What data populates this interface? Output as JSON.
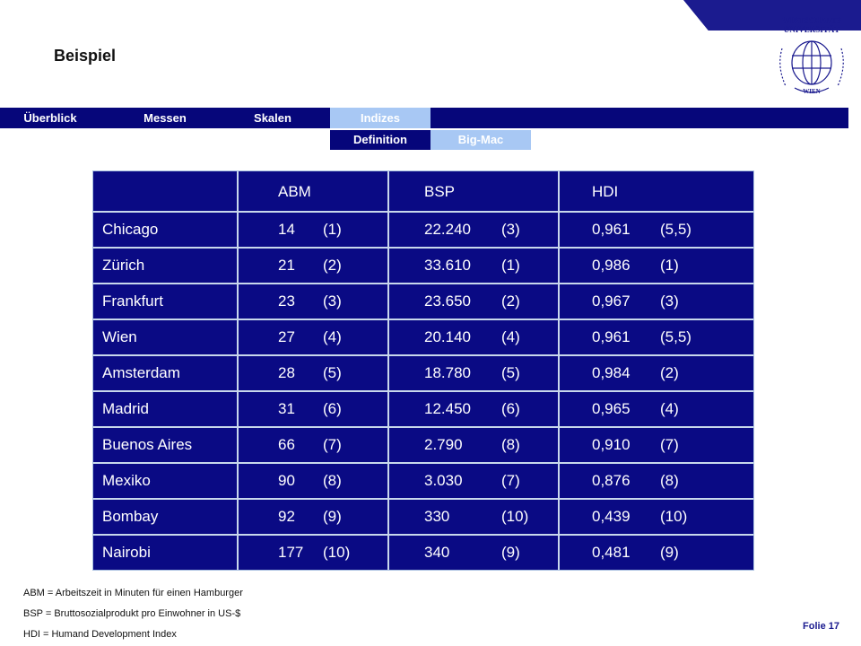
{
  "slide": {
    "title": "Beispiel",
    "folie": "Folie 17"
  },
  "logo": {
    "line1": "WIRTSCHAFTS",
    "line2": "UNIVERSITÄT",
    "line3": "WIEN"
  },
  "nav": {
    "primary": [
      "Überblick",
      "Messen",
      "Skalen",
      "Indizes"
    ],
    "active": "Indizes",
    "sub": [
      "Definition",
      "Big-Mac"
    ]
  },
  "table": {
    "headers": [
      "",
      "ABM",
      "BSP",
      "HDI"
    ],
    "rows": [
      {
        "city": "Chicago",
        "abm": "14",
        "abm_rank": "(1)",
        "bsp": "22.240",
        "bsp_rank": "(3)",
        "hdi": "0,961",
        "hdi_rank": "(5,5)"
      },
      {
        "city": "Zürich",
        "abm": "21",
        "abm_rank": "(2)",
        "bsp": "33.610",
        "bsp_rank": "(1)",
        "hdi": "0,986",
        "hdi_rank": "(1)"
      },
      {
        "city": "Frankfurt",
        "abm": "23",
        "abm_rank": "(3)",
        "bsp": "23.650",
        "bsp_rank": "(2)",
        "hdi": "0,967",
        "hdi_rank": "(3)"
      },
      {
        "city": "Wien",
        "abm": "27",
        "abm_rank": "(4)",
        "bsp": "20.140",
        "bsp_rank": "(4)",
        "hdi": "0,961",
        "hdi_rank": "(5,5)"
      },
      {
        "city": "Amsterdam",
        "abm": "28",
        "abm_rank": "(5)",
        "bsp": "18.780",
        "bsp_rank": "(5)",
        "hdi": "0,984",
        "hdi_rank": "(2)"
      },
      {
        "city": "Madrid",
        "abm": "31",
        "abm_rank": "(6)",
        "bsp": "12.450",
        "bsp_rank": "(6)",
        "hdi": "0,965",
        "hdi_rank": "(4)"
      },
      {
        "city": "Buenos Aires",
        "abm": "66",
        "abm_rank": "(7)",
        "bsp": "2.790",
        "bsp_rank": "(8)",
        "hdi": "0,910",
        "hdi_rank": "(7)"
      },
      {
        "city": "Mexiko",
        "abm": "90",
        "abm_rank": "(8)",
        "bsp": "3.030",
        "bsp_rank": "(7)",
        "hdi": "0,876",
        "hdi_rank": "(8)"
      },
      {
        "city": "Bombay",
        "abm": "92",
        "abm_rank": "(9)",
        "bsp": "330",
        "bsp_rank": "(10)",
        "hdi": "0,439",
        "hdi_rank": "(10)"
      },
      {
        "city": "Nairobi",
        "abm": "177",
        "abm_rank": "(10)",
        "bsp": "340",
        "bsp_rank": "(9)",
        "hdi": "0,481",
        "hdi_rank": "(9)"
      }
    ]
  },
  "notes": [
    "ABM = Arbeitszeit in Minuten für einen Hamburger",
    "BSP = Bruttosozialprodukt pro Einwohner in US-$",
    "HDI = Humand Development Index"
  ],
  "colors": {
    "navy": "#06067a",
    "table_bg": "#0a0a84",
    "light_blue": "#a8c8f4",
    "accent": "#1b1b8f"
  }
}
